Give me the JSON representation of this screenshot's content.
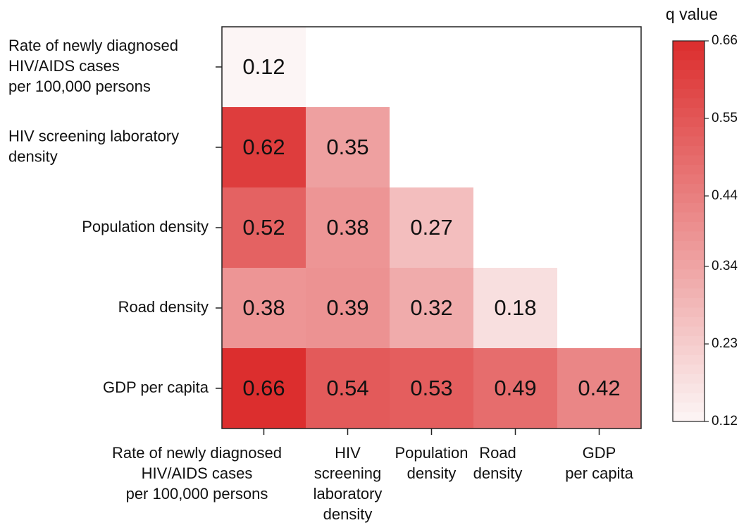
{
  "chart_data": {
    "type": "heatmap",
    "y_categories": [
      [
        "Rate of newly diagnosed",
        "HIV/AIDS cases",
        "per 100,000 persons"
      ],
      [
        "HIV screening laboratory",
        "density"
      ],
      [
        "Population density"
      ],
      [
        "Road density"
      ],
      [
        "GDP per capita"
      ]
    ],
    "x_categories": [
      [
        "Rate of newly diagnosed",
        "HIV/AIDS cases",
        "per 100,000 persons"
      ],
      [
        "HIV",
        "screening",
        "laboratory",
        "density"
      ],
      [
        "Population",
        "density"
      ],
      [
        "Road",
        "density"
      ],
      [
        "GDP",
        "per capita"
      ]
    ],
    "values": [
      [
        0.12,
        null,
        null,
        null,
        null
      ],
      [
        0.62,
        0.35,
        null,
        null,
        null
      ],
      [
        0.52,
        0.38,
        0.27,
        null,
        null
      ],
      [
        0.38,
        0.39,
        0.32,
        0.18,
        null
      ],
      [
        0.66,
        0.54,
        0.53,
        0.49,
        0.42
      ]
    ],
    "colorbar_label": "q value",
    "clim": [
      0.12,
      0.66
    ],
    "cticks": [
      0.12,
      0.23,
      0.34,
      0.44,
      0.55,
      0.66
    ],
    "colormap": [
      "#fcf5f5",
      "#dc2e2e"
    ]
  }
}
